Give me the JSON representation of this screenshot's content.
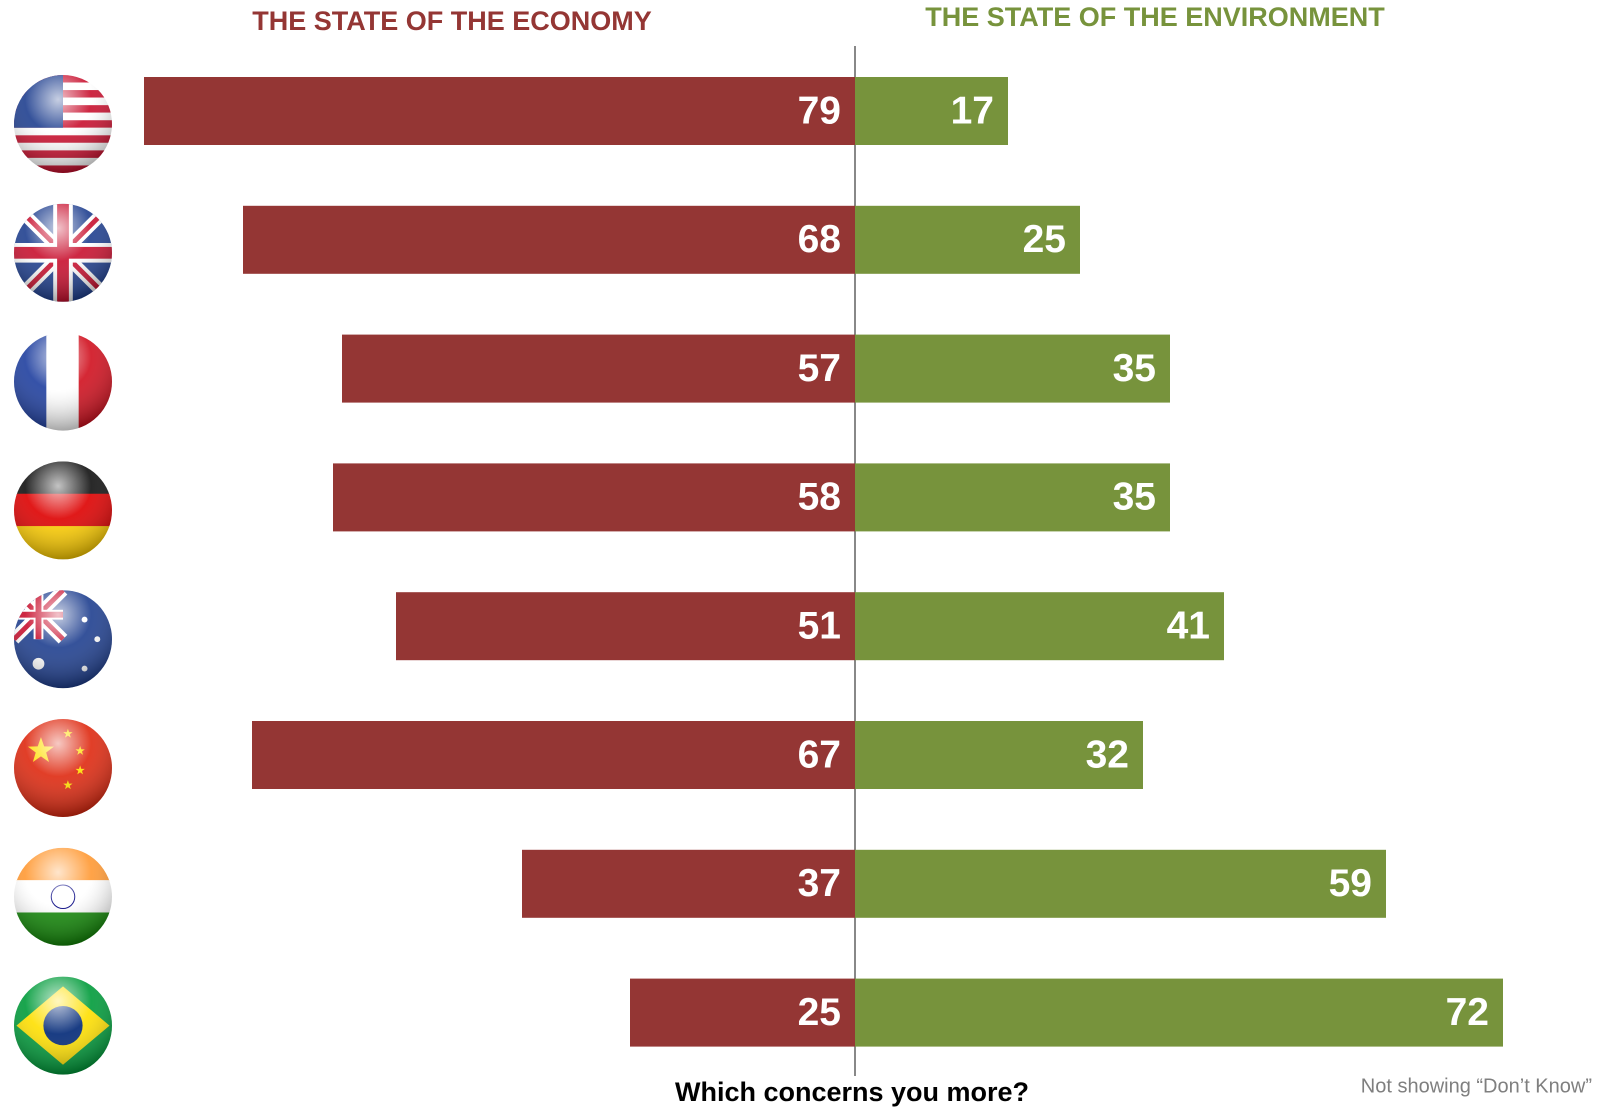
{
  "chart_data": {
    "type": "diverging-bar",
    "categories": [
      null,
      null,
      null,
      null,
      null,
      null,
      null,
      null
    ],
    "series": [
      {
        "name": "THE STATE OF THE ECONOMY",
        "color": "#943634",
        "values": [
          79,
          68,
          57,
          58,
          51,
          67,
          37,
          25
        ]
      },
      {
        "name": "THE STATE OF THE ENVIRONMENT",
        "color": "#77933c",
        "values": [
          17,
          25,
          35,
          35,
          41,
          32,
          59,
          72
        ]
      }
    ],
    "xlabel": "Which concerns you more?",
    "note": "Not showing “Don’t Know”"
  }
}
